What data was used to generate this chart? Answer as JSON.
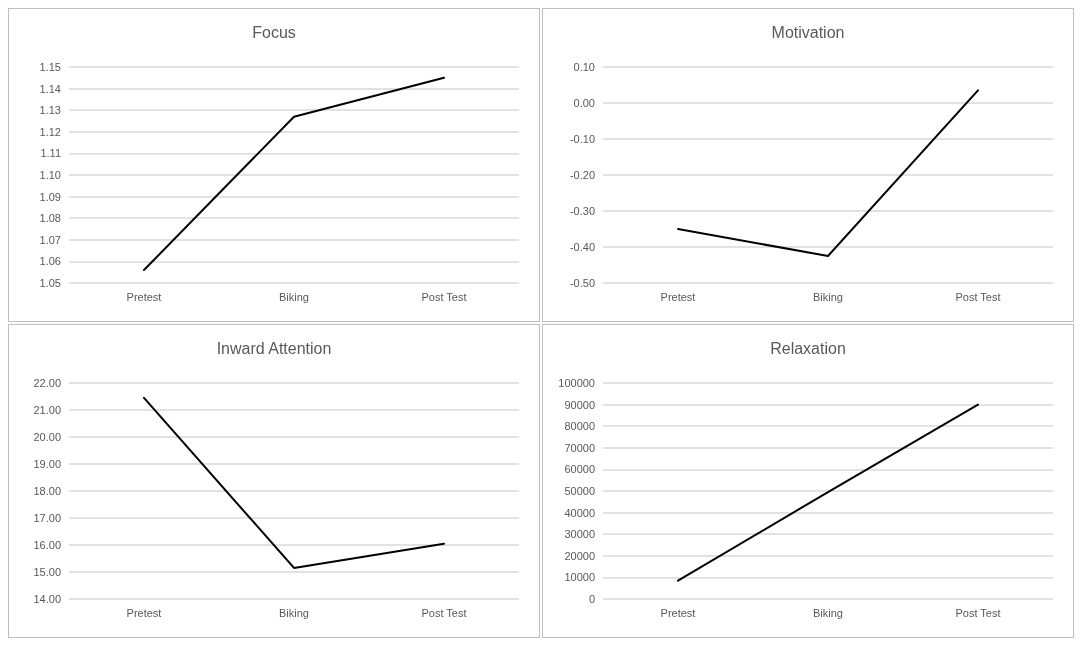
{
  "chart_data": [
    {
      "type": "line",
      "title": "Focus",
      "categories": [
        "Pretest",
        "Biking",
        "Post Test"
      ],
      "series": [
        {
          "color": "#000000",
          "values": [
            1.056,
            1.127,
            1.145
          ]
        }
      ],
      "ylim": [
        1.05,
        1.15
      ],
      "yticks": [
        {
          "value": 1.05,
          "label": "1.05"
        },
        {
          "value": 1.06,
          "label": "1.06"
        },
        {
          "value": 1.07,
          "label": "1.07"
        },
        {
          "value": 1.08,
          "label": "1.08"
        },
        {
          "value": 1.09,
          "label": "1.09"
        },
        {
          "value": 1.1,
          "label": "1.10"
        },
        {
          "value": 1.11,
          "label": "1.11"
        },
        {
          "value": 1.12,
          "label": "1.12"
        },
        {
          "value": 1.13,
          "label": "1.13"
        },
        {
          "value": 1.14,
          "label": "1.14"
        },
        {
          "value": 1.15,
          "label": "1.15"
        }
      ],
      "grid": "y",
      "marker": "none",
      "line_style": "solid"
    },
    {
      "type": "line",
      "title": "Motivation",
      "categories": [
        "Pretest",
        "Biking",
        "Post Test"
      ],
      "series": [
        {
          "color": "#000000",
          "values": [
            -0.35,
            -0.425,
            0.035
          ]
        }
      ],
      "ylim": [
        -0.5,
        0.1
      ],
      "yticks": [
        {
          "value": -0.5,
          "label": "-0.50"
        },
        {
          "value": -0.4,
          "label": "-0.40"
        },
        {
          "value": -0.3,
          "label": "-0.30"
        },
        {
          "value": -0.2,
          "label": "-0.20"
        },
        {
          "value": -0.1,
          "label": "-0.10"
        },
        {
          "value": 0,
          "label": "0.00"
        },
        {
          "value": 0.1,
          "label": "0.10"
        }
      ],
      "grid": "y",
      "marker": "none",
      "line_style": "solid"
    },
    {
      "type": "line",
      "title": "Inward Attention",
      "categories": [
        "Pretest",
        "Biking",
        "Post Test"
      ],
      "series": [
        {
          "color": "#000000",
          "values": [
            21.45,
            15.15,
            16.05
          ]
        }
      ],
      "ylim": [
        14,
        22
      ],
      "yticks": [
        {
          "value": 14,
          "label": "14.00"
        },
        {
          "value": 15,
          "label": "15.00"
        },
        {
          "value": 16,
          "label": "16.00"
        },
        {
          "value": 17,
          "label": "17.00"
        },
        {
          "value": 18,
          "label": "18.00"
        },
        {
          "value": 19,
          "label": "19.00"
        },
        {
          "value": 20,
          "label": "20.00"
        },
        {
          "value": 21,
          "label": "21.00"
        },
        {
          "value": 22,
          "label": "22.00"
        }
      ],
      "grid": "y",
      "marker": "none",
      "line_style": "solid"
    },
    {
      "type": "line",
      "title": "Relaxation",
      "categories": [
        "Pretest",
        "Biking",
        "Post Test"
      ],
      "series": [
        {
          "color": "#000000",
          "values": [
            8500,
            49500,
            90000
          ]
        }
      ],
      "ylim": [
        0,
        100000
      ],
      "yticks": [
        0,
        10000,
        20000,
        30000,
        40000,
        50000,
        60000,
        70000,
        80000,
        90000,
        100000
      ],
      "grid": "y",
      "marker": "none",
      "line_style": "solid"
    }
  ]
}
